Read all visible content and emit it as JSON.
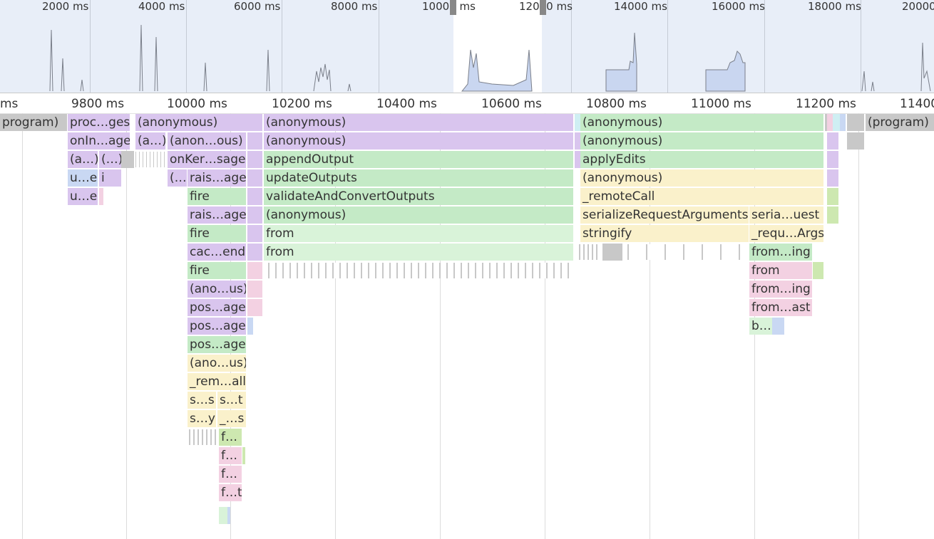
{
  "overview": {
    "ticks": [
      "2000 ms",
      "4000 ms",
      "6000 ms",
      "8000 ms",
      "10000 ms",
      "12000 ms",
      "14000 ms",
      "16000 ms",
      "18000 ms",
      "20000"
    ]
  },
  "detail_axis": {
    "ticks": [
      "ms",
      "9800 ms",
      "10000 ms",
      "10200 ms",
      "10400 ms",
      "10600 ms",
      "10800 ms",
      "11000 ms",
      "11200 ms",
      "11400"
    ]
  },
  "flame": {
    "row1": [
      "program)",
      "proc…ges",
      "(anonymous)",
      "(anonymous)",
      "(anonymous)",
      "(program)"
    ],
    "row2": [
      "onIn…age",
      "(a…)",
      "(anon…ous)",
      "(anonymous)",
      "(anonymous)"
    ],
    "row3": [
      "(a…)",
      "(…)",
      "onKer…sage",
      "appendOutput",
      "applyEdits"
    ],
    "row4": [
      "u…e",
      "i",
      "(…",
      "rais…age",
      "updateOutputs",
      "(anonymous)"
    ],
    "row5": [
      "u…e",
      "fire",
      "validateAndConvertOutputs",
      "_remoteCall"
    ],
    "row6": [
      "rais…age",
      "(anonymous)",
      "serializeRequestArguments",
      "seria…uest"
    ],
    "row7": [
      "fire",
      "from",
      "stringify",
      "_requ…Args"
    ],
    "row8": [
      "cac…end",
      "from",
      "from…ing"
    ],
    "row9": [
      "fire",
      "from"
    ],
    "row10": [
      "(ano…us)",
      "from…ing"
    ],
    "row11": [
      "pos…age",
      "from…ast"
    ],
    "row12": [
      "pos…age",
      "b…"
    ],
    "row13": [
      "pos…age"
    ],
    "row14": [
      "(ano…us)"
    ],
    "row15": [
      "_rem…all"
    ],
    "row16": [
      "s…s",
      "s…t"
    ],
    "row17": [
      "s…y",
      "_…s"
    ],
    "row18": [
      "f…"
    ],
    "row19": [
      "f…"
    ],
    "row20": [
      "f…"
    ],
    "row21": [
      "f…t"
    ]
  },
  "colors": {
    "purple": "#d9c5ee",
    "green": "#c4eac6",
    "yellow": "#faf1cb",
    "pink": "#f3d1e2",
    "overview_bg": "#e8eef8"
  }
}
